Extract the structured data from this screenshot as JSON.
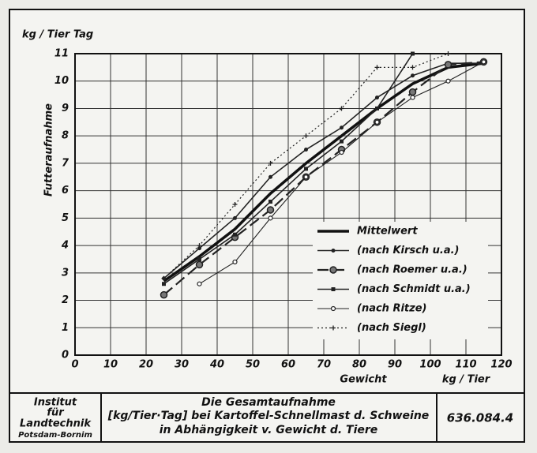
{
  "chart_data": {
    "type": "line",
    "y_unit": "kg / Tier Tag",
    "ylabel": "Futteraufnahme",
    "xlabel": "Gewicht",
    "x_unit": "kg / Tier",
    "x": [
      25,
      35,
      45,
      55,
      65,
      75,
      85,
      95,
      105,
      115
    ],
    "xlim": [
      0,
      120
    ],
    "xticks": [
      0,
      10,
      20,
      30,
      40,
      50,
      60,
      70,
      80,
      90,
      100,
      110,
      120
    ],
    "ylim": [
      0,
      11
    ],
    "yticks": [
      0,
      1,
      2,
      3,
      4,
      5,
      6,
      7,
      8,
      9,
      10,
      11
    ],
    "grid": true,
    "legend": "lower right",
    "series": [
      {
        "name": "Mittelwert",
        "color": "#111",
        "width": 3.5,
        "dash": "none",
        "marker": "none",
        "values": [
          2.7,
          3.6,
          4.6,
          5.9,
          7.0,
          8.0,
          9.0,
          9.9,
          10.5,
          10.65
        ]
      },
      {
        "name": "(nach Kirsch u.a.)",
        "color": "#222",
        "width": 1.6,
        "dash": "none",
        "marker": "dot",
        "values": [
          2.8,
          3.9,
          5.0,
          6.5,
          7.5,
          8.3,
          9.4,
          10.2,
          10.65,
          10.65
        ]
      },
      {
        "name": "(nach Roemer u.a.)",
        "color": "#222",
        "width": 2.2,
        "dash": "14 6",
        "marker": "circle",
        "values": [
          2.2,
          3.3,
          4.3,
          5.3,
          6.5,
          7.5,
          8.5,
          9.6,
          10.6,
          10.7
        ]
      },
      {
        "name": "(nach Schmidt u.a.)",
        "color": "#222",
        "width": 1.6,
        "dash": "none",
        "marker": "square",
        "values": [
          2.6,
          3.5,
          4.4,
          5.6,
          6.8,
          7.8,
          9.0,
          11.0,
          null,
          null
        ]
      },
      {
        "name": "(nach Ritze)",
        "color": "#222",
        "width": 1.1,
        "dash": "none",
        "marker": "open",
        "values": [
          null,
          2.6,
          3.4,
          5.0,
          6.5,
          7.4,
          8.5,
          9.4,
          10.0,
          10.7
        ]
      },
      {
        "name": "(nach Siegl)",
        "color": "#222",
        "width": 1.2,
        "dash": "2 3",
        "marker": "plus",
        "values": [
          2.8,
          4.0,
          5.5,
          7.0,
          8.0,
          9.0,
          10.5,
          10.5,
          11.0,
          null
        ]
      }
    ]
  },
  "footer": {
    "institute": [
      "Institut",
      "für",
      "Landtechnik",
      "Potsdam-Bornim"
    ],
    "title": [
      "Die Gesamtaufnahme",
      "[kg/Tier·Tag] bei Kartoffel-Schnellmast d. Schweine",
      "in Abhängigkeit v. Gewicht d. Tiere"
    ],
    "code": "636.084.4"
  }
}
